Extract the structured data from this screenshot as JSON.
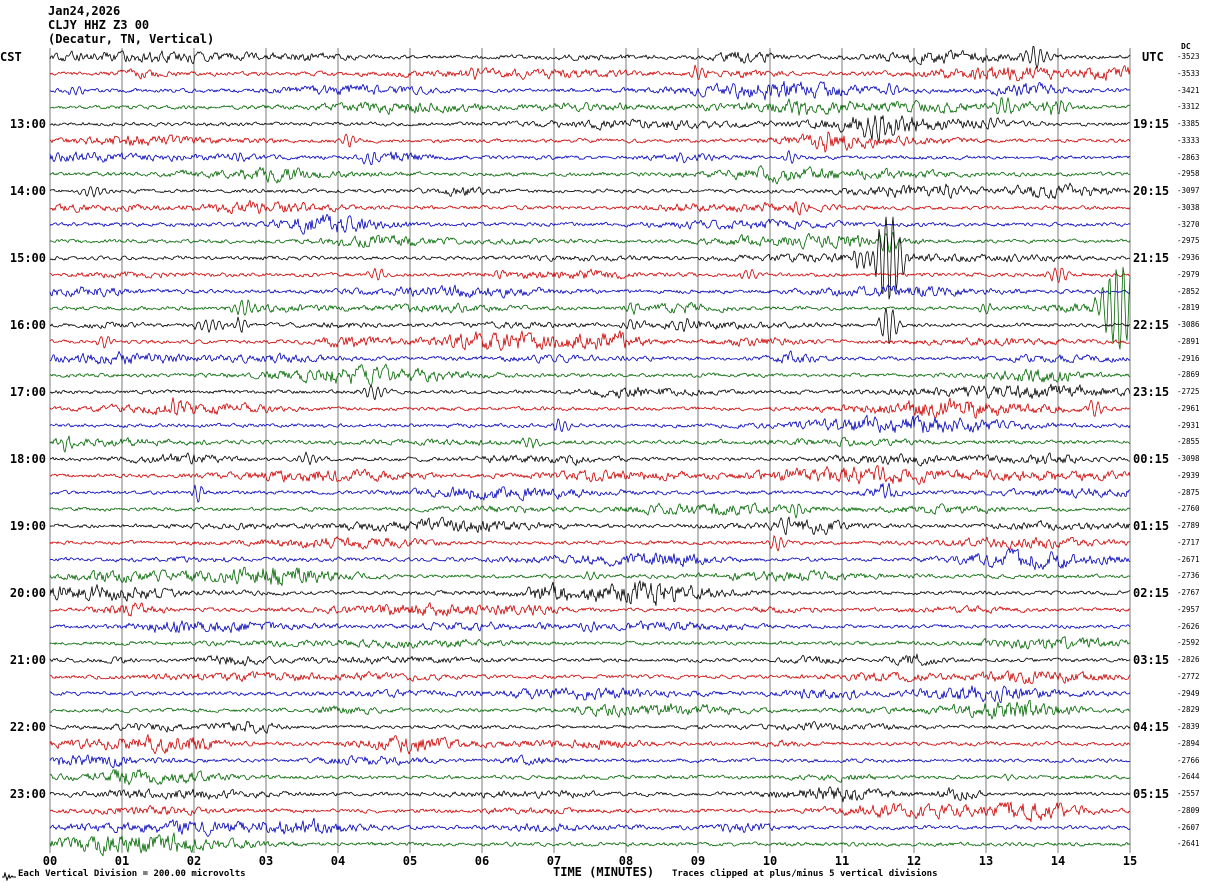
{
  "header": {
    "date": "Jan24,2026",
    "station": "CLJY HHZ Z3 00",
    "location": "(Decatur, TN, Vertical)"
  },
  "axes": {
    "left_label": "CST",
    "right_label": "UTC",
    "dc_label": "DC",
    "x_axis_label": "TIME (MINUTES)",
    "x_ticks": [
      "00",
      "01",
      "02",
      "03",
      "04",
      "05",
      "06",
      "07",
      "08",
      "09",
      "10",
      "11",
      "12",
      "13",
      "14",
      "15"
    ]
  },
  "left_times": [
    "13:00",
    "14:00",
    "15:00",
    "16:00",
    "17:00",
    "18:00",
    "19:00",
    "20:00",
    "21:00",
    "22:00",
    "23:00"
  ],
  "right_times": [
    "19:15",
    "20:15",
    "21:15",
    "22:15",
    "23:15",
    "00:15",
    "01:15",
    "02:15",
    "03:15",
    "04:15",
    "05:15"
  ],
  "dc_values": [
    "-3523",
    "-3533",
    "-3421",
    "-3312",
    "-3385",
    "-3333",
    "-2863",
    "-2958",
    "-3097",
    "-3038",
    "-3270",
    "-2975",
    "-2936",
    "-2979",
    "-2852",
    "-2819",
    "-3086",
    "-2891",
    "-2916",
    "-2869",
    "-2725",
    "-2961",
    "-2931",
    "-2855",
    "-3098",
    "-2939",
    "-2875",
    "-2760",
    "-2789",
    "-2717",
    "-2671",
    "-2736",
    "-2767",
    "-2957",
    "-2626",
    "-2592",
    "-2826",
    "-2772",
    "-2949",
    "-2829",
    "-2839",
    "-2894",
    "-2766",
    "-2644",
    "-2557",
    "-2809",
    "-2607",
    "-2641"
  ],
  "footer": {
    "left": "Each Vertical Division =  200.00 microvolts",
    "right": "Traces clipped at plus/minus 5 vertical divisions"
  },
  "chart_data": {
    "type": "line",
    "title": "CLJY HHZ Z3 00 helicorder (Decatur, TN, Vertical) Jan24,2026",
    "x_range_minutes": [
      0,
      15
    ],
    "rows": 48,
    "row_duration_minutes": 15,
    "first_row_start_cst": "12:00",
    "hour_label_rows_start": 4,
    "trace_color_cycle": [
      "#000000",
      "#cc0000",
      "#0000bb",
      "#006600"
    ],
    "grid": "vertical black lines every 1 minute, no horizontal gridlines",
    "clip_divisions": 5,
    "microvolts_per_division": 200.0,
    "events": [
      {
        "r": 0,
        "m": 13.7,
        "a": 12,
        "w": 8
      },
      {
        "r": 1,
        "m": 5.9,
        "a": 6,
        "w": 6
      },
      {
        "r": 1,
        "m": 9.0,
        "a": 8,
        "w": 6
      },
      {
        "r": 2,
        "m": 0.35,
        "a": 5,
        "w": 6
      },
      {
        "r": 2,
        "m": 11.7,
        "a": 6,
        "w": 6
      },
      {
        "r": 3,
        "m": 10.4,
        "a": 5,
        "w": 6
      },
      {
        "r": 3,
        "m": 13.25,
        "a": 8,
        "w": 8
      },
      {
        "r": 3,
        "m": 14.0,
        "a": 7,
        "w": 8
      },
      {
        "r": 4,
        "m": 11.5,
        "a": 9,
        "w": 12
      },
      {
        "r": 4,
        "m": 13.1,
        "a": 5,
        "w": 9
      },
      {
        "r": 5,
        "m": 4.15,
        "a": 6,
        "w": 6
      },
      {
        "r": 5,
        "m": 10.75,
        "a": 7,
        "w": 6
      },
      {
        "r": 6,
        "m": 2.6,
        "a": 5,
        "w": 6
      },
      {
        "r": 6,
        "m": 4.45,
        "a": 8,
        "w": 6
      },
      {
        "r": 6,
        "m": 8.8,
        "a": 5,
        "w": 6
      },
      {
        "r": 6,
        "m": 10.3,
        "a": 6,
        "w": 6
      },
      {
        "r": 8,
        "m": 0.6,
        "a": 5,
        "w": 9
      },
      {
        "r": 8,
        "m": 12.5,
        "a": 6,
        "w": 9
      },
      {
        "r": 9,
        "m": 10.4,
        "a": 6,
        "w": 6
      },
      {
        "r": 11,
        "m": 11.65,
        "a": 10,
        "w": 6
      },
      {
        "r": 12,
        "m": 11.3,
        "a": 10,
        "w": 9
      },
      {
        "r": 12,
        "m": 11.65,
        "a": 45,
        "w": 10
      },
      {
        "r": 13,
        "m": 4.55,
        "a": 7,
        "w": 6
      },
      {
        "r": 13,
        "m": 9.7,
        "a": 6,
        "w": 6
      },
      {
        "r": 13,
        "m": 14.0,
        "a": 9,
        "w": 6
      },
      {
        "r": 14,
        "m": 5.2,
        "a": 5,
        "w": 6
      },
      {
        "r": 15,
        "m": 2.7,
        "a": 8,
        "w": 9
      },
      {
        "r": 15,
        "m": 8.1,
        "a": 5,
        "w": 6
      },
      {
        "r": 15,
        "m": 13.0,
        "a": 5,
        "w": 6
      },
      {
        "r": 15,
        "m": 14.85,
        "a": 45,
        "w": 12
      },
      {
        "r": 16,
        "m": 2.2,
        "a": 6,
        "w": 12
      },
      {
        "r": 16,
        "m": 2.65,
        "a": 8,
        "w": 6
      },
      {
        "r": 16,
        "m": 8.1,
        "a": 5,
        "w": 6
      },
      {
        "r": 16,
        "m": 8.8,
        "a": 6,
        "w": 6
      },
      {
        "r": 16,
        "m": 11.65,
        "a": 20,
        "w": 6
      },
      {
        "r": 17,
        "m": 0.75,
        "a": 6,
        "w": 6
      },
      {
        "r": 20,
        "m": 4.5,
        "a": 7,
        "w": 9
      },
      {
        "r": 21,
        "m": 1.75,
        "a": 6,
        "w": 6
      },
      {
        "r": 21,
        "m": 14.5,
        "a": 7,
        "w": 6
      },
      {
        "r": 22,
        "m": 7.1,
        "a": 7,
        "w": 6
      },
      {
        "r": 23,
        "m": 0.2,
        "a": 7,
        "w": 6
      },
      {
        "r": 23,
        "m": 6.7,
        "a": 5,
        "w": 6
      },
      {
        "r": 24,
        "m": 3.6,
        "a": 5,
        "w": 9
      },
      {
        "r": 26,
        "m": 2.05,
        "a": 9,
        "w": 4
      },
      {
        "r": 26,
        "m": 11.6,
        "a": 6,
        "w": 6
      },
      {
        "r": 27,
        "m": 10.35,
        "a": 9,
        "w": 6
      },
      {
        "r": 28,
        "m": 10.2,
        "a": 5,
        "w": 9
      },
      {
        "r": 29,
        "m": 10.1,
        "a": 8,
        "w": 6
      },
      {
        "r": 31,
        "m": 7.5,
        "a": 5,
        "w": 6
      },
      {
        "r": 34,
        "m": 7.5,
        "a": 5,
        "w": 6
      },
      {
        "r": 35,
        "m": 13.9,
        "a": 5,
        "w": 6
      },
      {
        "r": 38,
        "m": 11.2,
        "a": 4,
        "w": 6
      },
      {
        "r": 43,
        "m": 13.3,
        "a": 4,
        "w": 6
      }
    ]
  }
}
